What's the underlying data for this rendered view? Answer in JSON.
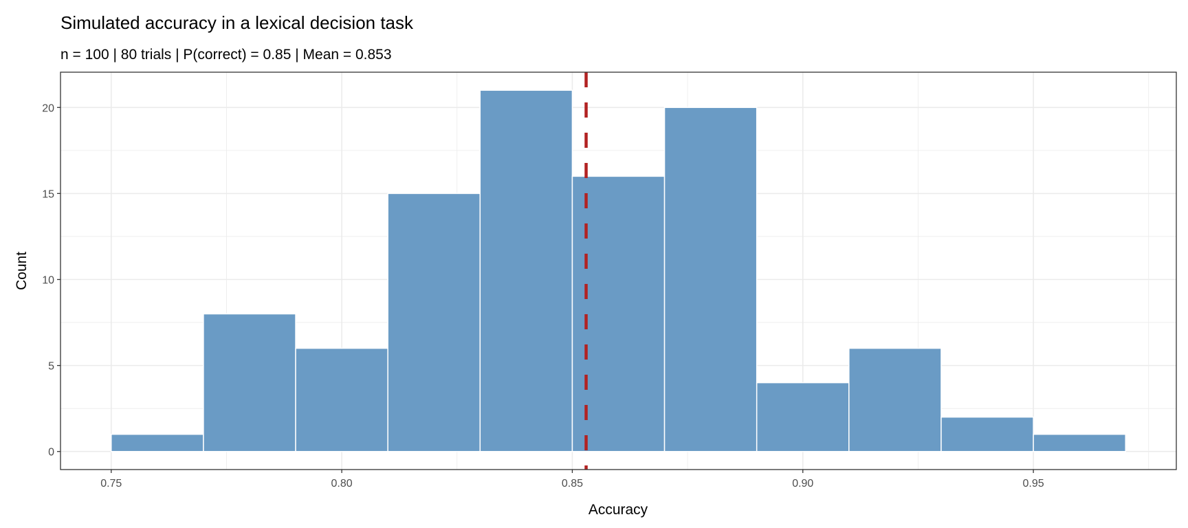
{
  "chart_data": {
    "type": "bar",
    "subtype": "histogram",
    "title": "Simulated accuracy in a lexical decision task",
    "subtitle": "n = 100 | 80 trials | P(correct) = 0.85 | Mean = 0.853",
    "xlabel": "Accuracy",
    "ylabel": "Count",
    "bins": [
      {
        "x0": 0.75,
        "x1": 0.77,
        "count": 1
      },
      {
        "x0": 0.77,
        "x1": 0.79,
        "count": 8
      },
      {
        "x0": 0.79,
        "x1": 0.81,
        "count": 6
      },
      {
        "x0": 0.81,
        "x1": 0.83,
        "count": 15
      },
      {
        "x0": 0.83,
        "x1": 0.85,
        "count": 21
      },
      {
        "x0": 0.85,
        "x1": 0.87,
        "count": 16
      },
      {
        "x0": 0.87,
        "x1": 0.89,
        "count": 20
      },
      {
        "x0": 0.89,
        "x1": 0.91,
        "count": 4
      },
      {
        "x0": 0.91,
        "x1": 0.93,
        "count": 6
      },
      {
        "x0": 0.93,
        "x1": 0.95,
        "count": 2
      },
      {
        "x0": 0.95,
        "x1": 0.97,
        "count": 1
      }
    ],
    "mean_line": {
      "value": 0.853,
      "color": "#B22222",
      "style": "dashed"
    },
    "xlim": [
      0.739,
      0.981
    ],
    "ylim": [
      -1.05,
      22.05
    ],
    "xticks": [
      "0.75",
      "0.80",
      "0.85",
      "0.90",
      "0.95"
    ],
    "yticks": [
      "0",
      "5",
      "10",
      "15",
      "20"
    ],
    "grid": true,
    "bar_color": "#6A9BC5",
    "bar_edge": "#FFFFFF"
  }
}
